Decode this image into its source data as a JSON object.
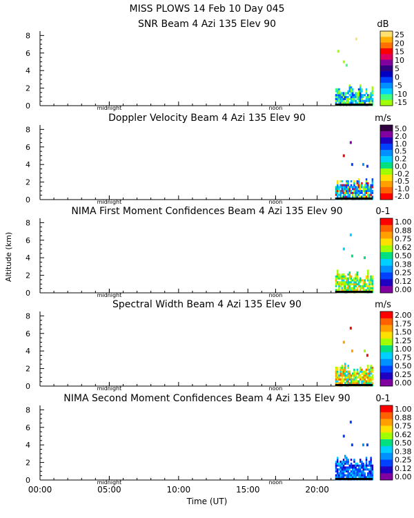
{
  "figure": {
    "title": "MISS PLOWS  14 Feb 10 Day 045",
    "ylabel": "Altitude (km)",
    "xlabel": "Time (UT)",
    "x_ticks": [
      "00:00",
      "05:00",
      "10:00",
      "15:00",
      "20:00"
    ],
    "y_ticks": [
      "0",
      "2",
      "4",
      "6",
      "8"
    ],
    "midnight_label": "midnight",
    "noon_label": "noon"
  },
  "chart_data": [
    {
      "type": "heatmap",
      "title": "SNR Beam 4 Azi 135 Elev 90",
      "unit": "dB",
      "colorbar_labels": [
        "25",
        "20",
        "15",
        "10",
        "5",
        "0",
        "-5",
        "-10",
        "-15"
      ],
      "colorbar_colors": [
        "#ffe070",
        "#ffb000",
        "#ff7000",
        "#ff0000",
        "#e00060",
        "#8000a0",
        "#300080",
        "#0000c0",
        "#0040ff",
        "#0090ff",
        "#00d0ff",
        "#40ff80",
        "#a0ff00"
      ],
      "xlim": [
        0,
        24
      ],
      "ylim": [
        0,
        8.5
      ],
      "data_region": {
        "time_start": 21.3,
        "time_end": 24.0,
        "alt_min": 0.0,
        "alt_max": 2.3
      },
      "scatter": [
        [
          22.8,
          7.6,
          "#ffe070"
        ],
        [
          21.5,
          6.2,
          "#a0ff00"
        ],
        [
          21.9,
          5.0,
          "#a0ff00"
        ],
        [
          22.1,
          4.6,
          "#40ff80"
        ]
      ],
      "palette": [
        "#a0ff00",
        "#40ff80",
        "#00d0ff",
        "#0090ff",
        "#0040ff",
        "#a0ff00",
        "#00d0ff"
      ]
    },
    {
      "type": "heatmap",
      "title": "Doppler Velocity Beam 4 Azi 135 Elev 90",
      "unit": "m/s",
      "colorbar_labels": [
        "5.0",
        "2.0",
        "1.0",
        "0.5",
        "0.2",
        "0.0",
        "-0.2",
        "-0.5",
        "-1.0",
        "-2.0"
      ],
      "colorbar_colors": [
        "#300040",
        "#8000a0",
        "#2000c0",
        "#0040ff",
        "#0090ff",
        "#00d0ff",
        "#00e080",
        "#a0ff00",
        "#ffe000",
        "#ffa000",
        "#ff6000",
        "#ff0000"
      ],
      "xlim": [
        0,
        24
      ],
      "ylim": [
        0,
        8.5
      ],
      "data_region": {
        "time_start": 21.3,
        "time_end": 24.0,
        "alt_min": 0.0,
        "alt_max": 2.5
      },
      "scatter": [
        [
          22.4,
          6.5,
          "#8000a0"
        ],
        [
          21.9,
          5.0,
          "#ff0000"
        ],
        [
          22.5,
          4.0,
          "#0040ff"
        ],
        [
          23.3,
          4.0,
          "#0090ff"
        ],
        [
          23.6,
          3.8,
          "#0040ff"
        ]
      ],
      "palette": [
        "#0090ff",
        "#0040ff",
        "#00d0ff",
        "#00e080",
        "#a0ff00",
        "#ffe000",
        "#ff0000",
        "#0090ff",
        "#0040ff"
      ]
    },
    {
      "type": "heatmap",
      "title": "NIMA First Moment Confidences Beam 4 Azi 135 Elev 90",
      "unit": "0-1",
      "colorbar_labels": [
        "1.00",
        "0.88",
        "0.75",
        "0.62",
        "0.50",
        "0.38",
        "0.25",
        "0.12",
        "0.00"
      ],
      "colorbar_colors": [
        "#ff0000",
        "#ff6000",
        "#ffa000",
        "#ffe000",
        "#a0ff00",
        "#00e080",
        "#00d0ff",
        "#0090ff",
        "#0040ff",
        "#2000c0",
        "#8000a0"
      ],
      "xlim": [
        0,
        24
      ],
      "ylim": [
        0,
        8.5
      ],
      "data_region": {
        "time_start": 21.3,
        "time_end": 24.0,
        "alt_min": 0.0,
        "alt_max": 2.5
      },
      "scatter": [
        [
          22.4,
          6.6,
          "#00d0ff"
        ],
        [
          21.9,
          5.0,
          "#00d0ff"
        ],
        [
          22.5,
          4.2,
          "#00e080"
        ],
        [
          23.4,
          4.0,
          "#00e080"
        ]
      ],
      "palette": [
        "#00e080",
        "#a0ff00",
        "#ffe000",
        "#00d0ff",
        "#00e080",
        "#a0ff00",
        "#ffa000"
      ]
    },
    {
      "type": "heatmap",
      "title": "Spectral Width Beam 4 Azi 135 Elev 90",
      "unit": "m/s",
      "colorbar_labels": [
        "2.00",
        "1.75",
        "1.50",
        "1.25",
        "1.00",
        "0.75",
        "0.50",
        "0.25",
        "0.00"
      ],
      "colorbar_colors": [
        "#ff0000",
        "#ff6000",
        "#ffa000",
        "#ffe000",
        "#a0ff00",
        "#00e080",
        "#00d0ff",
        "#0090ff",
        "#0040ff",
        "#2000c0",
        "#8000a0"
      ],
      "xlim": [
        0,
        24
      ],
      "ylim": [
        0,
        8.5
      ],
      "data_region": {
        "time_start": 21.3,
        "time_end": 24.0,
        "alt_min": 0.0,
        "alt_max": 2.5
      },
      "scatter": [
        [
          22.4,
          6.6,
          "#ff0000"
        ],
        [
          21.9,
          5.0,
          "#ffa000"
        ],
        [
          22.5,
          4.0,
          "#ffa000"
        ],
        [
          23.4,
          4.0,
          "#a0ff00"
        ],
        [
          23.6,
          3.5,
          "#ff0000"
        ]
      ],
      "palette": [
        "#a0ff00",
        "#ffe000",
        "#00e080",
        "#ffa000",
        "#ff6000",
        "#00d0ff",
        "#a0ff00"
      ]
    },
    {
      "type": "heatmap",
      "title": "NIMA Second Moment Confidences Beam 4 Azi 135 Elev 90",
      "unit": "0-1",
      "colorbar_labels": [
        "1.00",
        "0.88",
        "0.75",
        "0.62",
        "0.50",
        "0.38",
        "0.25",
        "0.12",
        "0.00"
      ],
      "colorbar_colors": [
        "#ff0000",
        "#ff6000",
        "#ffa000",
        "#ffe000",
        "#a0ff00",
        "#00e080",
        "#00d0ff",
        "#0090ff",
        "#0040ff",
        "#2000c0",
        "#8000a0"
      ],
      "xlim": [
        0,
        24
      ],
      "ylim": [
        0,
        8.5
      ],
      "data_region": {
        "time_start": 21.3,
        "time_end": 24.0,
        "alt_min": 0.0,
        "alt_max": 2.8
      },
      "scatter": [
        [
          22.4,
          6.6,
          "#0040ff"
        ],
        [
          21.9,
          5.0,
          "#0040ff"
        ],
        [
          22.5,
          4.0,
          "#0040ff"
        ],
        [
          23.3,
          4.0,
          "#0090ff"
        ],
        [
          23.6,
          4.0,
          "#0040ff"
        ]
      ],
      "palette": [
        "#0040ff",
        "#0090ff",
        "#2000c0",
        "#0040ff",
        "#00d0ff",
        "#0090ff"
      ]
    }
  ]
}
